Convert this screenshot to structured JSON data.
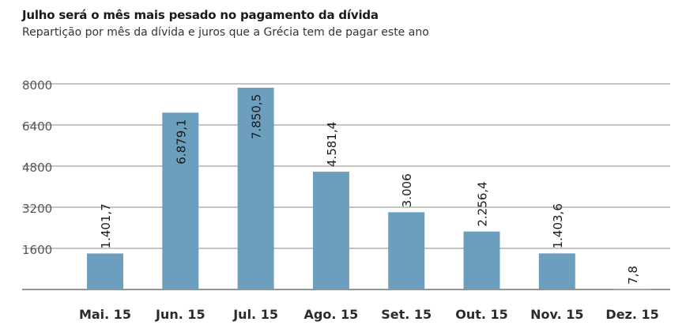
{
  "chart_data": {
    "type": "bar",
    "title": "Julho será o mês mais pesado no pagamento da dívida",
    "subtitle": "Repartição por mês da dívida e juros que a Grécia tem de pagar este ano",
    "categories": [
      "Mai. 15",
      "Jun. 15",
      "Jul. 15",
      "Ago. 15",
      "Set. 15",
      "Out. 15",
      "Nov. 15",
      "Dez. 15"
    ],
    "values": [
      1401.7,
      6879.1,
      7850.5,
      4581.4,
      3006,
      2256.4,
      1403.6,
      7.8
    ],
    "value_labels": [
      "1.401,7",
      "6.879,1",
      "7.850,5",
      "4.581,4",
      "3.006",
      "2.256,4",
      "1.403,6",
      "7,8"
    ],
    "y_ticks": [
      "1600",
      "3200",
      "4800",
      "6400",
      "8000"
    ],
    "y_tick_values": [
      1600,
      3200,
      4800,
      6400,
      8000
    ],
    "ylim": [
      0,
      8000
    ],
    "xlabel": "",
    "ylabel": "",
    "grid": true,
    "colors": {
      "bar": "#6b9fbd",
      "grid": "#8a8a8a",
      "axis": "#555555"
    }
  }
}
